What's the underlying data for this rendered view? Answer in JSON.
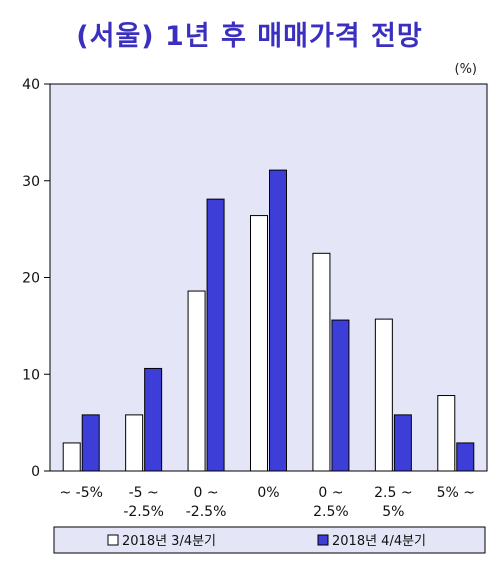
{
  "title": "(서울) 1년 후 매매가격 전망",
  "unit": "(%)",
  "colors": {
    "title": "#3b2fbf",
    "plot_bg": "#e4e6f7",
    "series_1": "#ffffff",
    "series_2": "#3d3ed8"
  },
  "chart_data": {
    "type": "bar",
    "categories": [
      [
        "~ -5%"
      ],
      [
        "-5 ~",
        "-2.5%"
      ],
      [
        "0 ~",
        "-2.5%"
      ],
      [
        "0%"
      ],
      [
        "0 ~",
        "2.5%"
      ],
      [
        "2.5 ~",
        "5%"
      ],
      [
        "5% ~"
      ]
    ],
    "series": [
      {
        "name": "2018년 3/4분기",
        "values": [
          2.9,
          5.8,
          18.6,
          26.4,
          22.5,
          15.7,
          7.8
        ]
      },
      {
        "name": "2018년 4/4분기",
        "values": [
          5.8,
          10.6,
          28.1,
          31.1,
          15.6,
          5.8,
          2.9
        ]
      }
    ],
    "ylim": [
      0,
      40
    ],
    "yticks": [
      0,
      10,
      20,
      30,
      40
    ],
    "grid": false,
    "legend_position": "bottom"
  }
}
